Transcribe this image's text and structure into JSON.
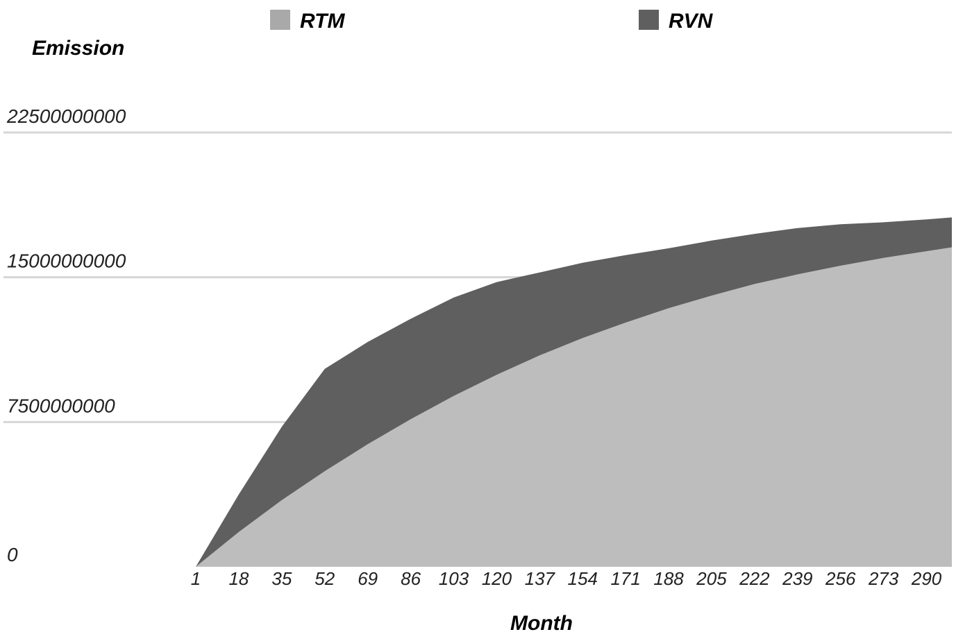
{
  "chart_data": {
    "type": "area",
    "stacked": true,
    "xlabel": "Month",
    "ylabel": "Emission",
    "ylim": [
      0,
      22500000000
    ],
    "yticks": [
      "0",
      "7500000000",
      "15000000000",
      "22500000000"
    ],
    "xticks": [
      "1",
      "18",
      "35",
      "52",
      "69",
      "86",
      "103",
      "120",
      "137",
      "154",
      "171",
      "188",
      "205",
      "222",
      "239",
      "256",
      "273",
      "290"
    ],
    "xlim": [
      1,
      300
    ],
    "grid": "horizontal",
    "legend_position": "top",
    "series": [
      {
        "name": "RTM",
        "color": "#bdbdbd",
        "x": [
          1,
          18,
          35,
          52,
          69,
          86,
          103,
          120,
          137,
          154,
          171,
          188,
          205,
          222,
          239,
          256,
          273,
          290,
          300
        ],
        "values": [
          0,
          1800000000,
          3450000000,
          4950000000,
          6350000000,
          7650000000,
          8850000000,
          9950000000,
          10950000000,
          11850000000,
          12650000000,
          13400000000,
          14050000000,
          14650000000,
          15150000000,
          15600000000,
          16000000000,
          16350000000,
          16550000000
        ]
      },
      {
        "name": "RVN",
        "color": "#5f5f5f",
        "x": [
          1,
          18,
          35,
          52,
          69,
          86,
          103,
          120,
          137,
          154,
          171,
          188,
          205,
          222,
          239,
          256,
          273,
          290,
          300
        ],
        "values": [
          0,
          1950000000,
          3800000000,
          5300000000,
          5300000000,
          5200000000,
          5100000000,
          4800000000,
          4300000000,
          3900000000,
          3500000000,
          3100000000,
          2850000000,
          2600000000,
          2400000000,
          2150000000,
          1850000000,
          1650000000,
          1550000000
        ]
      }
    ]
  }
}
